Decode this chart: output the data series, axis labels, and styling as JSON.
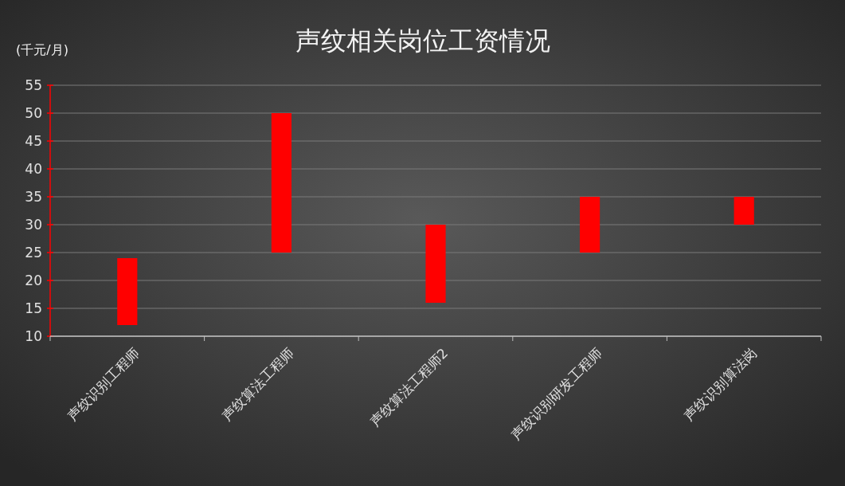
{
  "chart_data": {
    "type": "bar",
    "title": "声纹相关岗位工资情况",
    "ylabel": "(千元/月)",
    "categories": [
      "声纹识别工程师",
      "声纹算法工程师",
      "声纹算法工程师2",
      "声纹识别研发工程师",
      "声纹识别算法岗"
    ],
    "values": [
      12,
      25,
      14,
      10,
      5
    ],
    "base": [
      12,
      25,
      16,
      25,
      30
    ],
    "color": "#ff0000",
    "ylim": [
      10,
      55
    ],
    "yticks": [
      10,
      15,
      20,
      25,
      30,
      35,
      40,
      45,
      50,
      55
    ],
    "grid": "y"
  }
}
